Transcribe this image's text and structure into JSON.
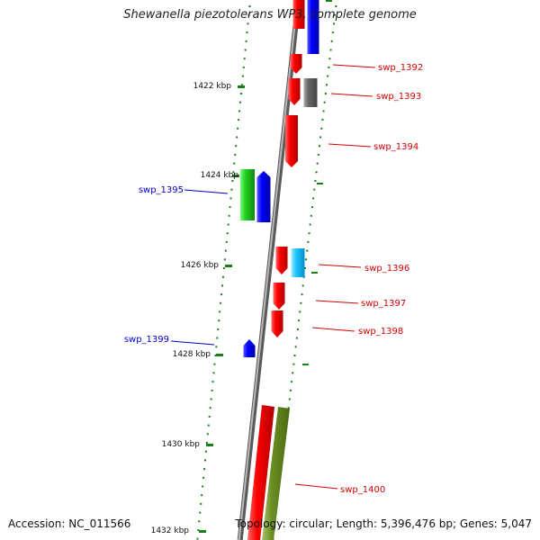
{
  "title": "Shewanella piezotolerans WP3, complete genome",
  "footer": {
    "accession": "Accession: NC_011566",
    "summary": "Topology: circular; Length: 5,396,476 bp; Genes: 5,047"
  },
  "ticks": [
    "1422 kbp",
    "1424 kbp",
    "1426 kbp",
    "1428 kbp",
    "1430 kbp",
    "1432 kbp"
  ],
  "genes": [
    {
      "label": "swp_1392",
      "color": "#d40000"
    },
    {
      "label": "swp_1393",
      "color": "#d40000"
    },
    {
      "label": "swp_1394",
      "color": "#d40000"
    },
    {
      "label": "swp_1395",
      "color": "#0000c8"
    },
    {
      "label": "swp_1396",
      "color": "#d40000"
    },
    {
      "label": "swp_1397",
      "color": "#d40000"
    },
    {
      "label": "swp_1398",
      "color": "#d40000"
    },
    {
      "label": "swp_1399",
      "color": "#0000c8"
    },
    {
      "label": "swp_1400",
      "color": "#d40000"
    }
  ],
  "colors": {
    "forward_cds": "#ff0000",
    "reverse_cds": "#0000ff",
    "rna": "#00cc00",
    "pseudo": "#666666",
    "misc": "#00bfff",
    "olive": "#6b8e23",
    "tick": "#1a7f1a",
    "backbone": "#888888"
  }
}
